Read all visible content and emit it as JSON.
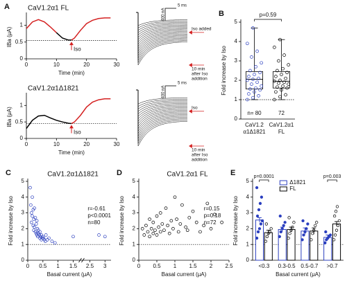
{
  "chart_data": [
    {
      "type": "line",
      "panel": "A",
      "title": "CaV1.2α1 FL",
      "title_color": "#000000",
      "ylabel": "IBa (μA)",
      "xlabel": "Time (min)",
      "x": [
        0,
        2,
        4,
        6,
        8,
        10,
        12,
        14,
        15,
        16,
        18,
        20,
        22,
        24,
        26,
        28
      ],
      "series": [
        {
          "color": "#d42020",
          "values": [
            0.9,
            1.1,
            1.17,
            1.1,
            0.95,
            0.78,
            null,
            null,
            0.56,
            0.62,
            0.85,
            1.05,
            1.15,
            1.2,
            1.22,
            1.22
          ]
        },
        {
          "color": "#000000",
          "values": [
            null,
            null,
            null,
            null,
            null,
            0.78,
            0.62,
            0.56,
            0.56,
            null,
            null,
            null,
            null,
            null,
            null,
            null
          ]
        }
      ],
      "xlim": [
        0,
        30
      ],
      "xticks": [
        0,
        10,
        20,
        30
      ],
      "ylim": [
        0,
        1.3
      ],
      "yticks": [
        0,
        0.5,
        1
      ],
      "hline": 0.55,
      "annotation": {
        "text": "Iso",
        "x": 15,
        "color": "#d42020"
      },
      "traces": {
        "scale_current": "400 nA",
        "scale_time": "5 ms",
        "label_color": "#d42020",
        "labels": [
          [
            "Iso added"
          ],
          [
            "10 min",
            "after Iso",
            "addition"
          ]
        ]
      }
    },
    {
      "type": "line",
      "panel": "",
      "title": "CaV1.2α1Δ1821",
      "title_color": "#2b3fbf",
      "ylabel": "IBa (μA)",
      "xlabel": "Time (min)",
      "x": [
        0,
        2,
        4,
        6,
        8,
        10,
        12,
        14,
        15,
        16,
        18,
        20,
        22,
        24,
        26,
        28
      ],
      "series": [
        {
          "color": "#000000",
          "values": [
            0.3,
            0.55,
            0.68,
            0.7,
            0.62,
            0.55,
            0.5,
            0.46,
            0.45,
            null,
            null,
            null,
            null,
            null,
            null,
            null
          ]
        },
        {
          "color": "#d42020",
          "values": [
            null,
            null,
            null,
            null,
            null,
            null,
            null,
            null,
            0.45,
            0.5,
            0.7,
            0.95,
            1.1,
            1.17,
            1.2,
            1.2
          ]
        }
      ],
      "xlim": [
        0,
        30
      ],
      "xticks": [
        0,
        10,
        20,
        30
      ],
      "ylim": [
        0,
        1.3
      ],
      "yticks": [
        0,
        0.5,
        1
      ],
      "hline": 0.45,
      "annotation": {
        "text": "Iso",
        "x": 15,
        "color": "#d42020"
      },
      "traces": {
        "scale_current": "400 nA",
        "scale_time": "5 ms",
        "label_color": "#d42020",
        "labels": [
          [
            "Iso"
          ],
          [
            "10 min",
            "after Iso",
            "addition"
          ]
        ]
      }
    },
    {
      "type": "box",
      "panel": "B",
      "ylabel": "Fold increase by Iso",
      "ylim": [
        0,
        5
      ],
      "yticks": [
        0,
        1,
        2,
        3,
        4,
        5
      ],
      "hline": 1,
      "annotation": "p=0.59",
      "n_labels": [
        "n= 80",
        "72"
      ],
      "categories": [
        [
          "CaV1.2",
          "α1Δ1821"
        ],
        [
          "CaV1.2α1",
          "FL"
        ]
      ],
      "boxes": [
        {
          "color": "#2b3fbf",
          "min": 1.0,
          "q1": 1.55,
          "median": 2.05,
          "q3": 2.45,
          "max": 4.7,
          "points": [
            1.0,
            1.1,
            1.2,
            1.3,
            1.4,
            1.5,
            1.55,
            1.6,
            1.7,
            1.8,
            1.9,
            2.0,
            2.05,
            2.1,
            2.2,
            2.3,
            2.4,
            2.5,
            2.7,
            2.9,
            3.2,
            3.5,
            3.9,
            4.7
          ]
        },
        {
          "color": "#000000",
          "min": 1.0,
          "q1": 1.6,
          "median": 1.95,
          "q3": 2.45,
          "max": 4.1,
          "points": [
            1.0,
            1.15,
            1.25,
            1.4,
            1.5,
            1.6,
            1.65,
            1.7,
            1.8,
            1.85,
            1.9,
            1.95,
            2.0,
            2.1,
            2.2,
            2.3,
            2.4,
            2.5,
            2.6,
            2.8,
            3.0,
            3.3,
            3.7,
            4.1
          ]
        }
      ]
    },
    {
      "type": "scatter",
      "panel": "C",
      "title": "CaV1.2α1Δ1821",
      "title_color": "#2b3fbf",
      "color": "#2b3fbf",
      "xlabel": "Basal current (μA)",
      "ylabel": "Fold increase by Iso",
      "stats": [
        "r=-0.61",
        "p<0.0001",
        "n=80"
      ],
      "x": [
        0.08,
        0.1,
        0.12,
        0.12,
        0.15,
        0.15,
        0.18,
        0.18,
        0.2,
        0.2,
        0.22,
        0.22,
        0.25,
        0.25,
        0.28,
        0.28,
        0.3,
        0.3,
        0.32,
        0.33,
        0.35,
        0.35,
        0.38,
        0.4,
        0.4,
        0.42,
        0.45,
        0.45,
        0.48,
        0.5,
        0.52,
        0.55,
        0.58,
        0.6,
        0.65,
        0.7,
        0.8,
        0.9,
        1.5,
        2.8,
        3.0
      ],
      "values": [
        4.6,
        3.5,
        3.0,
        2.4,
        4.0,
        2.8,
        3.2,
        2.2,
        2.6,
        1.9,
        3.3,
        2.1,
        2.7,
        1.8,
        2.3,
        1.7,
        2.5,
        1.6,
        2.0,
        1.5,
        1.9,
        1.7,
        1.6,
        1.8,
        1.4,
        1.5,
        1.6,
        1.3,
        1.4,
        1.5,
        1.4,
        1.3,
        1.2,
        1.6,
        1.3,
        1.4,
        1.2,
        1.1,
        1.5,
        1.6,
        1.5
      ],
      "xlim": [
        0,
        3.2
      ],
      "xticks": [
        0,
        0.5,
        1,
        1.5,
        2.5,
        3
      ],
      "xbreak": [
        1.7,
        2.3
      ],
      "ylim": [
        0,
        5
      ],
      "yticks": [
        0,
        1,
        2,
        3,
        4,
        5
      ],
      "hline": 1
    },
    {
      "type": "scatter",
      "panel": "D",
      "title": "CaV1.2α1 FL",
      "title_color": "#000000",
      "color": "#000000",
      "xlabel": "Basal current (μA)",
      "ylabel": "Fold increase by Iso",
      "stats": [
        "r=0.15",
        "p=0.18",
        "n=72"
      ],
      "x": [
        0.1,
        0.15,
        0.2,
        0.25,
        0.3,
        0.3,
        0.35,
        0.4,
        0.4,
        0.45,
        0.5,
        0.5,
        0.55,
        0.6,
        0.6,
        0.65,
        0.7,
        0.75,
        0.8,
        0.85,
        0.9,
        0.95,
        1.0,
        1.05,
        1.1,
        1.15,
        1.2,
        1.3,
        1.35,
        1.4,
        1.5,
        1.6,
        1.7,
        1.8,
        1.9,
        2.0,
        2.1,
        2.3
      ],
      "values": [
        2.0,
        1.6,
        2.2,
        1.8,
        2.6,
        1.5,
        2.0,
        2.4,
        1.7,
        1.9,
        2.8,
        1.6,
        2.1,
        3.0,
        1.8,
        2.3,
        1.9,
        3.3,
        2.2,
        1.7,
        2.5,
        2.0,
        4.0,
        2.6,
        1.8,
        2.3,
        3.5,
        2.1,
        1.9,
        2.7,
        3.1,
        2.4,
        1.8,
        2.2,
        3.6,
        2.0,
        2.9,
        2.4
      ],
      "xlim": [
        0,
        2.5
      ],
      "xticks": [
        0,
        0.5,
        1,
        1.5,
        2,
        2.5
      ],
      "ylim": [
        0,
        5
      ],
      "yticks": [
        0,
        1,
        2,
        3,
        4,
        5
      ],
      "hline": 1
    },
    {
      "type": "bar",
      "panel": "E",
      "xlabel": "Basal current (μA)",
      "ylabel": "Fold increase by Iso",
      "categories": [
        "<0.3",
        "0.3-0.5",
        "0.5-0.7",
        ">0.7"
      ],
      "series": [
        {
          "name": "Δ1821",
          "color": "#2b3fbf",
          "marker_fill": "#2b3fbf",
          "values": [
            2.55,
            1.95,
            1.85,
            1.45
          ],
          "errors": [
            0.15,
            0.15,
            0.2,
            0.15
          ],
          "points": [
            [
              1.4,
              1.8,
              2.0,
              2.3,
              2.5,
              2.8,
              3.2,
              3.6,
              4.0,
              4.6
            ],
            [
              1.5,
              1.8,
              2.0,
              2.2,
              2.4,
              2.8
            ],
            [
              1.3,
              1.6,
              1.8,
              2.0,
              2.3,
              2.5
            ],
            [
              1.1,
              1.3,
              1.4,
              1.5,
              1.6,
              1.8
            ]
          ]
        },
        {
          "name": "FL",
          "color": "#000000",
          "marker_fill": "none",
          "values": [
            1.75,
            1.95,
            1.85,
            2.3
          ],
          "errors": [
            0.15,
            0.15,
            0.2,
            0.15
          ],
          "points": [
            [
              1.2,
              1.5,
              1.7,
              1.8,
              2.0,
              2.3
            ],
            [
              1.4,
              1.7,
              1.9,
              2.1,
              2.4,
              2.7
            ],
            [
              1.3,
              1.7,
              1.9,
              2.2,
              2.4
            ],
            [
              1.3,
              1.6,
              1.9,
              2.2,
              2.5,
              2.8,
              3.1,
              3.4
            ]
          ]
        }
      ],
      "annotations": [
        {
          "text": "p=0.0001",
          "category": 0
        },
        {
          "text": "p=0.003",
          "category": 3
        }
      ],
      "ylim": [
        0,
        5
      ],
      "yticks": [
        0,
        1,
        2,
        3,
        4,
        5
      ],
      "hline": 1,
      "legend": "top"
    }
  ]
}
